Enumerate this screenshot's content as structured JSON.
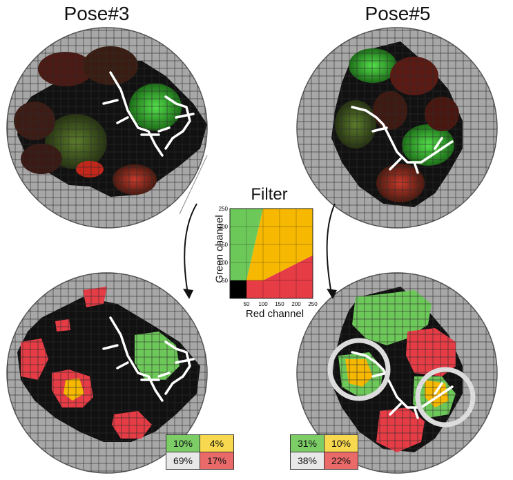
{
  "titles": {
    "left": "Pose#3",
    "right": "Pose#5"
  },
  "filter": {
    "title": "Filter",
    "xlabel": "Red channel",
    "ylabel": "Green channel",
    "ticks": [
      0,
      50,
      100,
      150,
      200,
      250
    ],
    "tick_labels_x": [
      "50",
      "100",
      "150",
      "200",
      "250"
    ],
    "tick_labels_y": [
      "50",
      "100",
      "150",
      "200",
      "250"
    ],
    "colors": {
      "black": "#000000",
      "green": "#6dc85a",
      "yellow": "#f6b800",
      "red": "#e63c46"
    }
  },
  "stats": {
    "pose3": {
      "green": "10%",
      "yellow": "4%",
      "white": "69%",
      "red": "17%"
    },
    "pose5": {
      "green": "31%",
      "yellow": "10%",
      "white": "38%",
      "red": "22%"
    }
  },
  "colors": {
    "disc": "#a7a7a7",
    "surface_black": "#111111",
    "ligand": "#ffffff",
    "highlight_circle": "#d8d8d8"
  }
}
